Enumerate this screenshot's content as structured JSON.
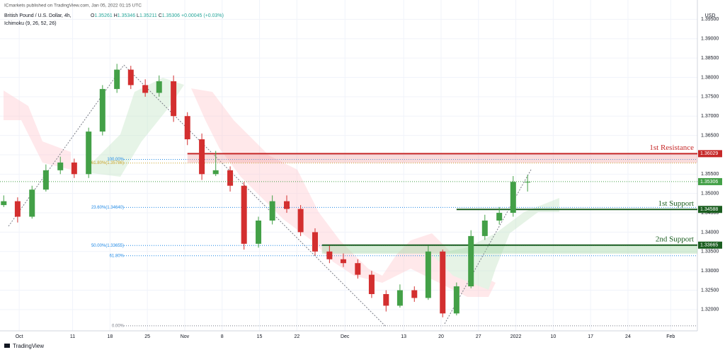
{
  "header": {
    "publisher": "ICmarkets published on TradingView.com, Jan 05, 2022 01:15 UTC",
    "symbol": "British Pound / U.S. Dollar, 4h,",
    "o_label": "O",
    "open": "1.35261",
    "h_label": "H",
    "high": "1.35346",
    "l_label": "L",
    "low": "1.35211",
    "c_label": "C",
    "close": "1.35306",
    "change": "+0.00045 (+0.03%)",
    "indicator": "Ichimoku (9, 26, 52, 26)",
    "currency": "USD",
    "brand": "TradingView"
  },
  "chart_data": {
    "type": "candlestick",
    "up_color": "#43a047",
    "down_color": "#d32f2f",
    "grid": true,
    "xlim": [
      -3.6,
      127
    ],
    "ylim": [
      1.3145,
      1.4
    ],
    "xticks": [
      {
        "value": 0,
        "label": "Oct"
      },
      {
        "value": 10,
        "label": "11"
      },
      {
        "value": 17,
        "label": "18"
      },
      {
        "value": 24,
        "label": "25"
      },
      {
        "value": 31,
        "label": "Nov"
      },
      {
        "value": 38,
        "label": "8"
      },
      {
        "value": 45,
        "label": "15"
      },
      {
        "value": 52,
        "label": "22"
      },
      {
        "value": 61,
        "label": "Dec"
      },
      {
        "value": 72,
        "label": "13"
      },
      {
        "value": 79,
        "label": "20"
      },
      {
        "value": 86,
        "label": "27"
      },
      {
        "value": 93,
        "label": "2022"
      },
      {
        "value": 100,
        "label": "10"
      },
      {
        "value": 107,
        "label": "17"
      },
      {
        "value": 114,
        "label": "24"
      },
      {
        "value": 122,
        "label": "Feb"
      }
    ],
    "yticks": [
      {
        "value": 1.32,
        "label": "1.32000"
      },
      {
        "value": 1.325,
        "label": "1.32500"
      },
      {
        "value": 1.33,
        "label": "1.33000"
      },
      {
        "value": 1.335,
        "label": "1.33500"
      },
      {
        "value": 1.34,
        "label": "1.34000"
      },
      {
        "value": 1.345,
        "label": "1.34500"
      },
      {
        "value": 1.35,
        "label": "1.35000"
      },
      {
        "value": 1.355,
        "label": "1.35500"
      },
      {
        "value": 1.36,
        "label": "1.36000"
      },
      {
        "value": 1.365,
        "label": "1.36500"
      },
      {
        "value": 1.37,
        "label": "1.37000"
      },
      {
        "value": 1.375,
        "label": "1.37500"
      },
      {
        "value": 1.38,
        "label": "1.38000"
      },
      {
        "value": 1.385,
        "label": "1.38500"
      },
      {
        "value": 1.39,
        "label": "1.39000"
      },
      {
        "value": 1.395,
        "label": "1.39500"
      }
    ],
    "x": [
      -2.9,
      -0.3,
      2.4,
      5.0,
      7.7,
      10.3,
      13.0,
      15.6,
      18.3,
      20.9,
      23.6,
      26.2,
      28.9,
      31.5,
      34.2,
      36.8,
      39.5,
      42.1,
      44.8,
      47.4,
      50.1,
      52.7,
      55.4,
      58.1,
      60.7,
      63.4,
      66.0,
      68.7,
      71.3,
      74.0,
      76.6,
      79.3,
      81.9,
      84.6,
      87.2,
      89.9,
      92.5,
      95.2
    ],
    "open": [
      1.347,
      1.348,
      1.344,
      1.351,
      1.356,
      1.358,
      1.355,
      1.366,
      1.377,
      1.382,
      1.378,
      1.376,
      1.379,
      1.37,
      1.364,
      1.355,
      1.356,
      1.352,
      1.337,
      1.343,
      1.348,
      1.346,
      1.34,
      1.335,
      1.333,
      1.332,
      1.329,
      1.324,
      1.321,
      1.325,
      1.323,
      1.335,
      1.319,
      1.326,
      1.339,
      1.343,
      1.345,
      1.353
    ],
    "high": [
      1.3495,
      1.349,
      1.352,
      1.3575,
      1.3595,
      1.359,
      1.367,
      1.378,
      1.3835,
      1.383,
      1.3795,
      1.3805,
      1.3805,
      1.371,
      1.3655,
      1.361,
      1.357,
      1.353,
      1.344,
      1.3495,
      1.3495,
      1.347,
      1.341,
      1.3365,
      1.3345,
      1.333,
      1.33,
      1.325,
      1.3265,
      1.326,
      1.3365,
      1.3355,
      1.327,
      1.3405,
      1.3445,
      1.3465,
      1.3545,
      1.3548
    ],
    "low": [
      1.3465,
      1.3425,
      1.3435,
      1.3505,
      1.355,
      1.354,
      1.354,
      1.365,
      1.376,
      1.377,
      1.375,
      1.375,
      1.3685,
      1.3625,
      1.3535,
      1.3545,
      1.3505,
      1.3355,
      1.336,
      1.342,
      1.345,
      1.339,
      1.334,
      1.332,
      1.331,
      1.328,
      1.323,
      1.3195,
      1.3205,
      1.322,
      1.3225,
      1.318,
      1.3185,
      1.3255,
      1.338,
      1.342,
      1.344,
      1.3505
    ],
    "close": [
      1.348,
      1.344,
      1.351,
      1.356,
      1.358,
      1.355,
      1.366,
      1.377,
      1.382,
      1.378,
      1.376,
      1.379,
      1.37,
      1.364,
      1.355,
      1.356,
      1.352,
      1.337,
      1.343,
      1.348,
      1.346,
      1.34,
      1.335,
      1.333,
      1.332,
      1.329,
      1.324,
      1.321,
      1.325,
      1.323,
      1.335,
      1.319,
      1.326,
      1.339,
      1.343,
      1.345,
      1.353,
      1.353
    ],
    "last_price": 1.35306,
    "levels": [
      {
        "name": "1st Resistance",
        "value": 1.36029,
        "color": "#c62828",
        "from": 31.5
      },
      {
        "name": "1st Support",
        "value": 1.34588,
        "color": "#1b5e20",
        "from": 81.9
      },
      {
        "name": "2nd Support",
        "value": 1.33665,
        "color": "#1b5e20",
        "from": 56.7
      }
    ],
    "fib": [
      {
        "label": "100.00%",
        "price": 1.3588,
        "color": "#1e88e5"
      },
      {
        "label": "61.80%(1.35786)",
        "price": 1.35786,
        "color": "#c9a227"
      },
      {
        "label": "23.60%(1.34640)",
        "price": 1.3464,
        "color": "#1e88e5"
      },
      {
        "label": "50.00%(1.33655)",
        "price": 1.33655,
        "color": "#1e88e5"
      },
      {
        "label": "61.80%",
        "price": 1.3339,
        "color": "#1e88e5"
      },
      {
        "label": "0.00%",
        "price": 1.3158,
        "color": "#787b86"
      }
    ]
  }
}
